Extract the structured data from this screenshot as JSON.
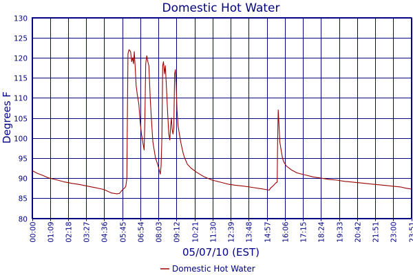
{
  "chart_data": {
    "type": "line",
    "title": "Domestic Hot Water",
    "xlabel": "05/07/10 (EST)",
    "ylabel": "Degrees F",
    "ylim": [
      80,
      130
    ],
    "yticks": [
      80,
      85,
      90,
      95,
      100,
      105,
      110,
      115,
      120,
      125,
      130
    ],
    "x_unit": "minutes since 00:00",
    "xlim": [
      0,
      1431
    ],
    "xtick_labels": [
      "00:00",
      "01:09",
      "02:18",
      "03:27",
      "04:36",
      "05:45",
      "06:54",
      "08:03",
      "09:12",
      "10:21",
      "11:30",
      "12:39",
      "13:48",
      "14:57",
      "16:06",
      "17:15",
      "18:24",
      "19:33",
      "20:42",
      "21:51",
      "23:00",
      "23:51"
    ],
    "grid": true,
    "legend_position": "bottom-center",
    "series": [
      {
        "name": "Domestic Hot Water",
        "color": "#990000",
        "points": [
          [
            0,
            91.9
          ],
          [
            20,
            91.2
          ],
          [
            40,
            90.7
          ],
          [
            60,
            90.1
          ],
          [
            90,
            89.6
          ],
          [
            120,
            89.1
          ],
          [
            150,
            88.7
          ],
          [
            180,
            88.4
          ],
          [
            210,
            88.0
          ],
          [
            240,
            87.6
          ],
          [
            270,
            87.2
          ],
          [
            290,
            86.6
          ],
          [
            300,
            86.3
          ],
          [
            320,
            86.1
          ],
          [
            330,
            86.2
          ],
          [
            340,
            87.0
          ],
          [
            350,
            87.6
          ],
          [
            354,
            88.0
          ],
          [
            358,
            90.0
          ],
          [
            362,
            121.0
          ],
          [
            366,
            122.0
          ],
          [
            372,
            121.5
          ],
          [
            376,
            119.0
          ],
          [
            380,
            120.0
          ],
          [
            383,
            118.5
          ],
          [
            386,
            121.5
          ],
          [
            389,
            118.0
          ],
          [
            393,
            113.0
          ],
          [
            398,
            110.5
          ],
          [
            403,
            108.5
          ],
          [
            408,
            104.0
          ],
          [
            413,
            101.0
          ],
          [
            418,
            99.0
          ],
          [
            423,
            97.0
          ],
          [
            426,
            105.0
          ],
          [
            429,
            118.5
          ],
          [
            433,
            120.5
          ],
          [
            437,
            119.0
          ],
          [
            441,
            118.0
          ],
          [
            446,
            110.0
          ],
          [
            451,
            104.0
          ],
          [
            456,
            99.0
          ],
          [
            461,
            97.0
          ],
          [
            466,
            95.0
          ],
          [
            471,
            94.0
          ],
          [
            476,
            93.0
          ],
          [
            480,
            92.0
          ],
          [
            484,
            91.0
          ],
          [
            487,
            93.0
          ],
          [
            490,
            100.0
          ],
          [
            493,
            118.0
          ],
          [
            496,
            119.0
          ],
          [
            500,
            116.0
          ],
          [
            503,
            118.0
          ],
          [
            507,
            113.0
          ],
          [
            512,
            106.0
          ],
          [
            516,
            101.0
          ],
          [
            520,
            99.5
          ],
          [
            523,
            103.0
          ],
          [
            526,
            105.0
          ],
          [
            529,
            102.0
          ],
          [
            532,
            101.0
          ],
          [
            535,
            102.5
          ],
          [
            538,
            116.0
          ],
          [
            541,
            117.0
          ],
          [
            544,
            113.0
          ],
          [
            547,
            107.0
          ],
          [
            551,
            103.0
          ],
          [
            556,
            101.0
          ],
          [
            561,
            99.0
          ],
          [
            566,
            97.5
          ],
          [
            571,
            96.0
          ],
          [
            576,
            95.0
          ],
          [
            586,
            93.5
          ],
          [
            600,
            92.5
          ],
          [
            620,
            91.5
          ],
          [
            650,
            90.3
          ],
          [
            680,
            89.5
          ],
          [
            710,
            89.0
          ],
          [
            740,
            88.5
          ],
          [
            770,
            88.2
          ],
          [
            800,
            88.0
          ],
          [
            830,
            87.7
          ],
          [
            860,
            87.4
          ],
          [
            880,
            87.2
          ],
          [
            895,
            87.0
          ],
          [
            900,
            87.5
          ],
          [
            910,
            88.1
          ],
          [
            920,
            88.8
          ],
          [
            925,
            89.0
          ],
          [
            927,
            100.0
          ],
          [
            929,
            107.0
          ],
          [
            932,
            103.0
          ],
          [
            935,
            99.0
          ],
          [
            940,
            97.0
          ],
          [
            945,
            95.0
          ],
          [
            950,
            94.0
          ],
          [
            960,
            93.0
          ],
          [
            980,
            92.0
          ],
          [
            1000,
            91.3
          ],
          [
            1030,
            90.8
          ],
          [
            1060,
            90.3
          ],
          [
            1090,
            90.0
          ],
          [
            1120,
            89.7
          ],
          [
            1150,
            89.5
          ],
          [
            1180,
            89.2
          ],
          [
            1210,
            89.0
          ],
          [
            1240,
            88.8
          ],
          [
            1270,
            88.6
          ],
          [
            1300,
            88.4
          ],
          [
            1330,
            88.2
          ],
          [
            1360,
            88.0
          ],
          [
            1390,
            87.8
          ],
          [
            1410,
            87.5
          ],
          [
            1431,
            87.3
          ]
        ]
      }
    ]
  }
}
